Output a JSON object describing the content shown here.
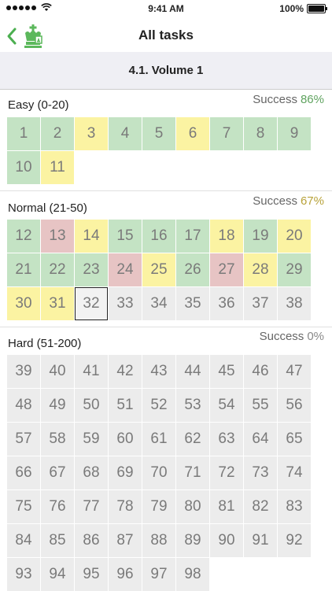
{
  "status_bar": {
    "signal_label": "",
    "wifi": "wifi",
    "time": "9:41 AM",
    "battery": "100%"
  },
  "nav": {
    "title": "All tasks",
    "back_icon": "chevron-left-icon",
    "logo": "chess-king-icon"
  },
  "volume": {
    "title": "4.1. Volume 1"
  },
  "colors": {
    "green": "#c4e3c4",
    "yellow": "#fbf3a2",
    "red": "#e7c4c4",
    "gray": "#ececec",
    "accent": "#4caf50"
  },
  "sections": [
    {
      "title": "Easy (0-20)",
      "success_label": "Success",
      "success_value": "86%",
      "success_color": "#5fa35f",
      "tasks": [
        {
          "n": "1",
          "s": "green"
        },
        {
          "n": "2",
          "s": "green"
        },
        {
          "n": "3",
          "s": "yellow"
        },
        {
          "n": "4",
          "s": "green"
        },
        {
          "n": "5",
          "s": "green"
        },
        {
          "n": "6",
          "s": "yellow"
        },
        {
          "n": "7",
          "s": "green"
        },
        {
          "n": "8",
          "s": "green"
        },
        {
          "n": "9",
          "s": "green"
        },
        {
          "n": "10",
          "s": "green"
        },
        {
          "n": "11",
          "s": "yellow"
        }
      ]
    },
    {
      "title": "Normal (21-50)",
      "success_label": "Success",
      "success_value": "67%",
      "success_color": "#b8a23a",
      "tasks": [
        {
          "n": "12",
          "s": "green"
        },
        {
          "n": "13",
          "s": "red"
        },
        {
          "n": "14",
          "s": "yellow"
        },
        {
          "n": "15",
          "s": "green"
        },
        {
          "n": "16",
          "s": "green"
        },
        {
          "n": "17",
          "s": "green"
        },
        {
          "n": "18",
          "s": "yellow"
        },
        {
          "n": "19",
          "s": "green"
        },
        {
          "n": "20",
          "s": "yellow"
        },
        {
          "n": "21",
          "s": "green"
        },
        {
          "n": "22",
          "s": "green"
        },
        {
          "n": "23",
          "s": "green"
        },
        {
          "n": "24",
          "s": "red"
        },
        {
          "n": "25",
          "s": "yellow"
        },
        {
          "n": "26",
          "s": "green"
        },
        {
          "n": "27",
          "s": "red"
        },
        {
          "n": "28",
          "s": "yellow"
        },
        {
          "n": "29",
          "s": "green"
        },
        {
          "n": "30",
          "s": "yellow"
        },
        {
          "n": "31",
          "s": "yellow"
        },
        {
          "n": "32",
          "s": "current"
        },
        {
          "n": "33",
          "s": "gray"
        },
        {
          "n": "34",
          "s": "gray"
        },
        {
          "n": "35",
          "s": "gray"
        },
        {
          "n": "36",
          "s": "gray"
        },
        {
          "n": "37",
          "s": "gray"
        },
        {
          "n": "38",
          "s": "gray"
        }
      ]
    },
    {
      "title": "Hard (51-200)",
      "success_label": "Success",
      "success_value": "0%",
      "success_color": "#888888",
      "tasks": [
        {
          "n": "39",
          "s": "gray"
        },
        {
          "n": "40",
          "s": "gray"
        },
        {
          "n": "41",
          "s": "gray"
        },
        {
          "n": "42",
          "s": "gray"
        },
        {
          "n": "43",
          "s": "gray"
        },
        {
          "n": "44",
          "s": "gray"
        },
        {
          "n": "45",
          "s": "gray"
        },
        {
          "n": "46",
          "s": "gray"
        },
        {
          "n": "47",
          "s": "gray"
        },
        {
          "n": "48",
          "s": "gray"
        },
        {
          "n": "49",
          "s": "gray"
        },
        {
          "n": "50",
          "s": "gray"
        },
        {
          "n": "51",
          "s": "gray"
        },
        {
          "n": "52",
          "s": "gray"
        },
        {
          "n": "53",
          "s": "gray"
        },
        {
          "n": "54",
          "s": "gray"
        },
        {
          "n": "55",
          "s": "gray"
        },
        {
          "n": "56",
          "s": "gray"
        },
        {
          "n": "57",
          "s": "gray"
        },
        {
          "n": "58",
          "s": "gray"
        },
        {
          "n": "59",
          "s": "gray"
        },
        {
          "n": "60",
          "s": "gray"
        },
        {
          "n": "61",
          "s": "gray"
        },
        {
          "n": "62",
          "s": "gray"
        },
        {
          "n": "63",
          "s": "gray"
        },
        {
          "n": "64",
          "s": "gray"
        },
        {
          "n": "65",
          "s": "gray"
        },
        {
          "n": "66",
          "s": "gray"
        },
        {
          "n": "67",
          "s": "gray"
        },
        {
          "n": "68",
          "s": "gray"
        },
        {
          "n": "69",
          "s": "gray"
        },
        {
          "n": "70",
          "s": "gray"
        },
        {
          "n": "71",
          "s": "gray"
        },
        {
          "n": "72",
          "s": "gray"
        },
        {
          "n": "73",
          "s": "gray"
        },
        {
          "n": "74",
          "s": "gray"
        },
        {
          "n": "75",
          "s": "gray"
        },
        {
          "n": "76",
          "s": "gray"
        },
        {
          "n": "77",
          "s": "gray"
        },
        {
          "n": "78",
          "s": "gray"
        },
        {
          "n": "79",
          "s": "gray"
        },
        {
          "n": "80",
          "s": "gray"
        },
        {
          "n": "81",
          "s": "gray"
        },
        {
          "n": "82",
          "s": "gray"
        },
        {
          "n": "83",
          "s": "gray"
        },
        {
          "n": "84",
          "s": "gray"
        },
        {
          "n": "85",
          "s": "gray"
        },
        {
          "n": "86",
          "s": "gray"
        },
        {
          "n": "87",
          "s": "gray"
        },
        {
          "n": "88",
          "s": "gray"
        },
        {
          "n": "89",
          "s": "gray"
        },
        {
          "n": "90",
          "s": "gray"
        },
        {
          "n": "91",
          "s": "gray"
        },
        {
          "n": "92",
          "s": "gray"
        },
        {
          "n": "93",
          "s": "gray"
        },
        {
          "n": "94",
          "s": "gray"
        },
        {
          "n": "95",
          "s": "gray"
        },
        {
          "n": "96",
          "s": "gray"
        },
        {
          "n": "97",
          "s": "gray"
        },
        {
          "n": "98",
          "s": "gray"
        }
      ]
    }
  ]
}
